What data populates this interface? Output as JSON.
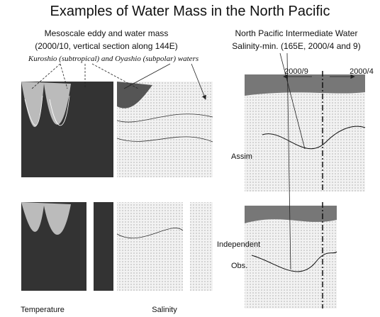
{
  "title": "Examples of Water Mass in the North Pacific",
  "left_header": {
    "line1": "Mesoscale eddy and water mass",
    "line2": "(2000/10, vertical section along 144E)",
    "line3": "Kuroshio (subtropical) and Oyashio (subpolar) waters"
  },
  "right_header": {
    "line1": "North Pacific Intermediate Water",
    "line2": "Salinity-min.  (165E, 2000/4 and 9)"
  },
  "annotations": {
    "sep": "2000/9",
    "apr": "2000/4",
    "assim": "Assim",
    "independent": "Independent",
    "obs": "Obs."
  },
  "captions": {
    "temperature": "Temperature",
    "salinity": "Salinity"
  }
}
